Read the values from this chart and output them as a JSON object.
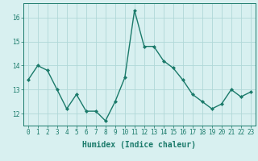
{
  "x": [
    0,
    1,
    2,
    3,
    4,
    5,
    6,
    7,
    8,
    9,
    10,
    11,
    12,
    13,
    14,
    15,
    16,
    17,
    18,
    19,
    20,
    21,
    22,
    23
  ],
  "y": [
    13.4,
    14.0,
    13.8,
    13.0,
    12.2,
    12.8,
    12.1,
    12.1,
    11.7,
    12.5,
    13.5,
    16.3,
    14.8,
    14.8,
    14.2,
    13.9,
    13.4,
    12.8,
    12.5,
    12.2,
    12.4,
    13.0,
    12.7,
    12.9
  ],
  "line_color": "#1a7a6a",
  "marker": "D",
  "marker_size": 2.0,
  "linewidth": 1.0,
  "background_color": "#d8f0f0",
  "grid_color": "#b0d8d8",
  "xlabel": "Humidex (Indice chaleur)",
  "ylim": [
    11.5,
    16.6
  ],
  "xlim": [
    -0.5,
    23.5
  ],
  "yticks": [
    12,
    13,
    14,
    15,
    16
  ],
  "xticks": [
    0,
    1,
    2,
    3,
    4,
    5,
    6,
    7,
    8,
    9,
    10,
    11,
    12,
    13,
    14,
    15,
    16,
    17,
    18,
    19,
    20,
    21,
    22,
    23
  ],
  "tick_fontsize": 5.5,
  "xlabel_fontsize": 7.0
}
